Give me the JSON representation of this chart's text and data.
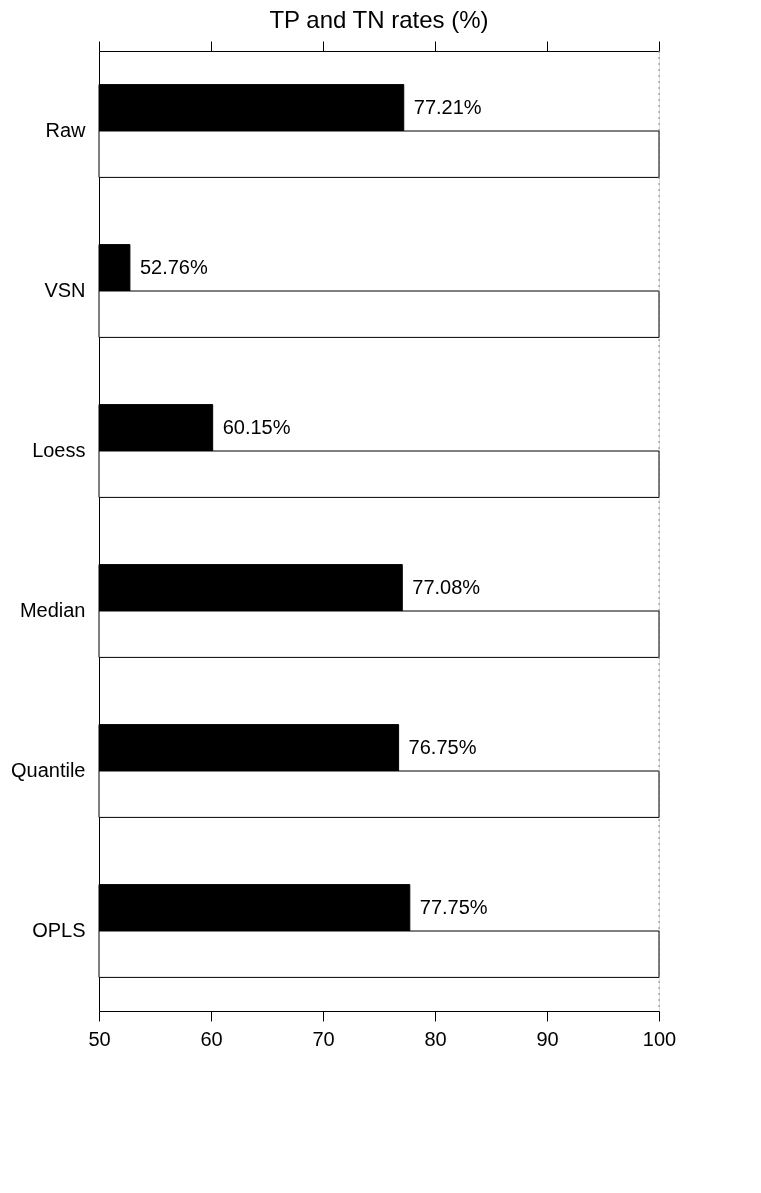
{
  "chart_data": {
    "type": "bar",
    "orientation": "horizontal",
    "title": "TP and TN rates (%)",
    "categories": [
      "Raw",
      "VSN",
      "Loess",
      "Median",
      "Quantile",
      "OPLS"
    ],
    "series": [
      {
        "color": "#000000",
        "values": [
          77.21,
          52.76,
          60.15,
          77.08,
          76.75,
          77.75
        ],
        "value_labels": [
          "77.21%",
          "52.76%",
          "60.15%",
          "77.08%",
          "76.75%",
          "77.75%"
        ]
      },
      {
        "color": "#ffffff",
        "values": [
          100,
          100,
          100,
          100,
          100,
          100
        ]
      }
    ],
    "xlim": [
      50,
      100
    ],
    "xticks": [
      50,
      60,
      70,
      80,
      90,
      100
    ],
    "ref_lines": [
      {
        "axis": "x",
        "value": 100,
        "color": "#888888",
        "line_style": "dotted"
      }
    ],
    "grid": false
  }
}
